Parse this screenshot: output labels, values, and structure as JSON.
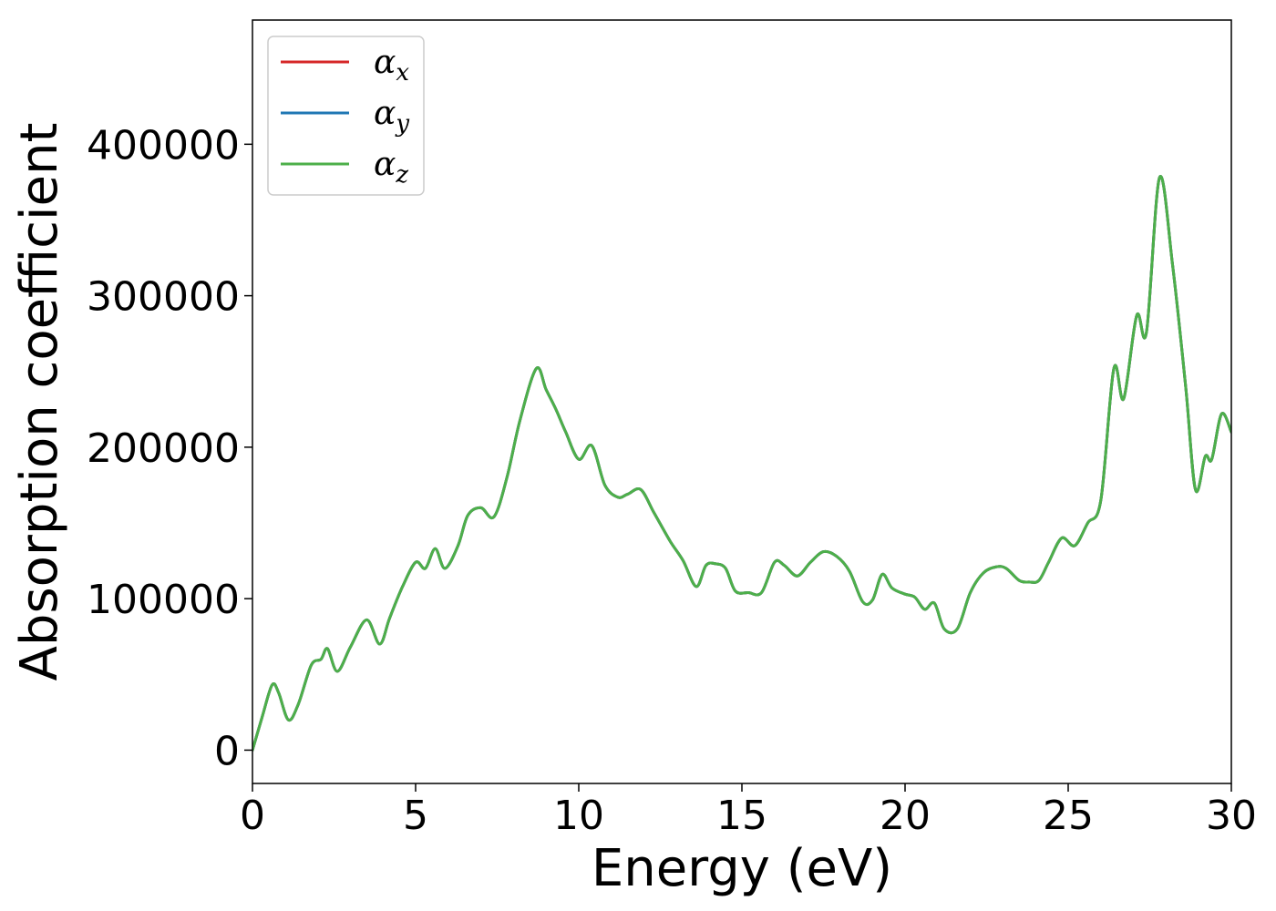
{
  "chart_data": {
    "type": "line",
    "xlabel": "Energy (eV)",
    "ylabel": "Absorption coefficient",
    "xlim": [
      0,
      30
    ],
    "ylim": [
      -22000,
      482000
    ],
    "xticks": [
      0,
      5,
      10,
      15,
      20,
      25,
      30
    ],
    "yticks": [
      0,
      100000,
      200000,
      300000,
      400000
    ],
    "xtick_labels": [
      "0",
      "5",
      "10",
      "15",
      "20",
      "25",
      "30"
    ],
    "ytick_labels": [
      "0",
      "100000",
      "200000",
      "300000",
      "400000"
    ],
    "grid": false,
    "legend": {
      "position": "top-left",
      "entries": [
        {
          "main": "α",
          "sub": "x",
          "color": "#d62728"
        },
        {
          "main": "α",
          "sub": "y",
          "color": "#1f77b4"
        },
        {
          "main": "α",
          "sub": "z",
          "color": "#4daf4a"
        }
      ]
    },
    "x": [
      0,
      0.3,
      0.6,
      0.8,
      1.1,
      1.4,
      1.8,
      2.1,
      2.3,
      2.6,
      3.0,
      3.5,
      3.9,
      4.2,
      4.6,
      5.0,
      5.3,
      5.6,
      5.9,
      6.3,
      6.6,
      7.0,
      7.4,
      7.8,
      8.2,
      8.7,
      9.0,
      9.3,
      9.6,
      10.0,
      10.4,
      10.8,
      11.2,
      11.5,
      11.9,
      12.3,
      12.8,
      13.2,
      13.6,
      13.9,
      14.2,
      14.5,
      14.8,
      15.2,
      15.6,
      16.0,
      16.3,
      16.7,
      17.1,
      17.5,
      17.9,
      18.3,
      18.7,
      19.0,
      19.3,
      19.6,
      20.0,
      20.3,
      20.6,
      20.9,
      21.2,
      21.6,
      22.0,
      22.4,
      22.8,
      23.1,
      23.5,
      23.8,
      24.1,
      24.4,
      24.8,
      25.2,
      25.6,
      26.0,
      26.4,
      26.7,
      27.1,
      27.4,
      27.8,
      28.2,
      28.6,
      28.9,
      29.2,
      29.4,
      29.7,
      30.0
    ],
    "series": [
      {
        "name": "αx",
        "color": "#d62728",
        "values": [
          0,
          22000,
          43000,
          38000,
          20000,
          30000,
          56000,
          60000,
          67000,
          52000,
          68000,
          86000,
          70000,
          87000,
          108000,
          124000,
          120000,
          133000,
          120000,
          135000,
          155000,
          160000,
          154000,
          180000,
          218000,
          252000,
          238000,
          225000,
          210000,
          192000,
          201000,
          175000,
          167000,
          169000,
          172000,
          157000,
          138000,
          125000,
          108000,
          122000,
          123000,
          120000,
          105000,
          104000,
          104000,
          124000,
          122000,
          115000,
          124000,
          131000,
          128000,
          118000,
          98000,
          99000,
          116000,
          107000,
          103000,
          101000,
          93000,
          97000,
          80000,
          80000,
          104000,
          117000,
          121000,
          120000,
          112000,
          111000,
          112000,
          124000,
          140000,
          135000,
          150000,
          165000,
          252000,
          232000,
          287000,
          276000,
          378000,
          320000,
          240000,
          172000,
          194000,
          192000,
          222000,
          210000
        ]
      },
      {
        "name": "αy",
        "color": "#1f77b4",
        "values": [
          0,
          22000,
          43000,
          38000,
          20000,
          30000,
          56000,
          60000,
          67000,
          52000,
          68000,
          86000,
          70000,
          87000,
          108000,
          124000,
          120000,
          133000,
          120000,
          135000,
          155000,
          160000,
          154000,
          180000,
          218000,
          252000,
          238000,
          225000,
          210000,
          192000,
          201000,
          175000,
          167000,
          169000,
          172000,
          157000,
          138000,
          125000,
          108000,
          122000,
          123000,
          120000,
          105000,
          104000,
          104000,
          124000,
          122000,
          115000,
          124000,
          131000,
          128000,
          118000,
          98000,
          99000,
          116000,
          107000,
          103000,
          101000,
          93000,
          97000,
          80000,
          80000,
          104000,
          117000,
          121000,
          120000,
          112000,
          111000,
          112000,
          124000,
          140000,
          135000,
          150000,
          165000,
          252000,
          232000,
          287000,
          276000,
          378000,
          320000,
          240000,
          172000,
          194000,
          192000,
          222000,
          210000
        ]
      },
      {
        "name": "αz",
        "color": "#4daf4a",
        "values": [
          0,
          22000,
          43000,
          38000,
          20000,
          30000,
          56000,
          60000,
          67000,
          52000,
          68000,
          86000,
          70000,
          87000,
          108000,
          124000,
          120000,
          133000,
          120000,
          135000,
          155000,
          160000,
          154000,
          180000,
          218000,
          252000,
          238000,
          225000,
          210000,
          192000,
          201000,
          175000,
          167000,
          169000,
          172000,
          157000,
          138000,
          125000,
          108000,
          122000,
          123000,
          120000,
          105000,
          104000,
          104000,
          124000,
          122000,
          115000,
          124000,
          131000,
          128000,
          118000,
          98000,
          99000,
          116000,
          107000,
          103000,
          101000,
          93000,
          97000,
          80000,
          80000,
          104000,
          117000,
          121000,
          120000,
          112000,
          111000,
          112000,
          124000,
          140000,
          135000,
          150000,
          165000,
          252000,
          232000,
          287000,
          276000,
          378000,
          320000,
          240000,
          172000,
          194000,
          192000,
          222000,
          210000
        ]
      }
    ]
  }
}
